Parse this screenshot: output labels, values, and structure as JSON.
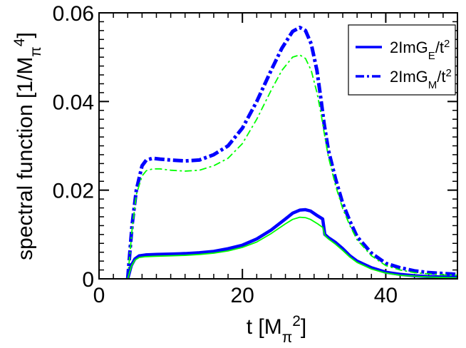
{
  "chart_data": {
    "type": "line",
    "xlabel": "t [M_π^2]",
    "ylabel": "spectral function [1/M_π^4]",
    "xlim": [
      0,
      50
    ],
    "ylim": [
      0,
      0.06
    ],
    "x_ticks": [
      {
        "value": 0,
        "label": "0"
      },
      {
        "value": 20,
        "label": "20"
      },
      {
        "value": 40,
        "label": "40"
      }
    ],
    "y_ticks": [
      {
        "value": 0,
        "label": "0"
      },
      {
        "value": 0.02,
        "label": "0.02"
      },
      {
        "value": 0.04,
        "label": "0.04"
      },
      {
        "value": 0.06,
        "label": "0.06"
      }
    ],
    "x_minor_step": 2,
    "y_minor_step": 0.002,
    "legend": {
      "position": "top-right",
      "entries": [
        {
          "label": "2ImG",
          "sub": "E",
          "suffix": "/t",
          "sup": "2",
          "style": "solid",
          "color": "#0000ff"
        },
        {
          "label": "2ImG",
          "sub": "M",
          "suffix": "/t",
          "sup": "2",
          "style": "dashdot",
          "color": "#0000ff"
        }
      ]
    },
    "series": [
      {
        "name": "2ImG_M/t^2 (band)",
        "style": "dashdot-thick",
        "color": "#0000ff",
        "x": [
          4,
          4.6,
          5.2,
          6,
          6.6,
          7.5,
          8.5,
          10,
          12,
          14,
          16,
          18,
          20,
          22,
          24,
          25.5,
          27,
          28,
          28.8,
          29.6,
          30.4,
          31,
          31.4,
          32,
          33,
          34,
          35,
          36,
          38,
          40,
          42,
          44,
          46,
          48,
          50
        ],
        "values": [
          0,
          0.012,
          0.02,
          0.0255,
          0.0268,
          0.0272,
          0.027,
          0.0268,
          0.0266,
          0.0268,
          0.028,
          0.03,
          0.034,
          0.04,
          0.047,
          0.052,
          0.0558,
          0.0567,
          0.056,
          0.053,
          0.047,
          0.04,
          0.035,
          0.029,
          0.0225,
          0.017,
          0.013,
          0.0095,
          0.0058,
          0.0035,
          0.0025,
          0.0018,
          0.0014,
          0.0012,
          0.001
        ]
      },
      {
        "name": "2ImG_M/t^2 (lower)",
        "style": "dashdot-thin",
        "color": "#00ff00",
        "x": [
          4,
          4.6,
          5.2,
          6,
          6.6,
          7.5,
          8.5,
          10,
          12,
          14,
          16,
          18,
          20,
          22,
          24,
          25.5,
          27,
          28,
          28.8,
          29.6,
          30.4,
          31,
          31.4,
          32,
          33,
          34,
          35,
          36,
          38,
          40,
          42,
          44,
          46,
          48,
          50
        ],
        "values": [
          0,
          0.011,
          0.019,
          0.0232,
          0.0244,
          0.0248,
          0.0248,
          0.0245,
          0.0243,
          0.0245,
          0.0255,
          0.0272,
          0.0305,
          0.036,
          0.0425,
          0.047,
          0.05,
          0.0505,
          0.0497,
          0.047,
          0.042,
          0.037,
          0.033,
          0.0275,
          0.021,
          0.0158,
          0.012,
          0.0088,
          0.0052,
          0.003,
          0.002,
          0.0014,
          0.0011,
          0.0009,
          0.0008
        ]
      },
      {
        "name": "2ImG_E/t^2 (band)",
        "style": "solid-thick",
        "color": "#0000ff",
        "x": [
          4,
          4.5,
          5,
          5.6,
          6.5,
          8,
          10,
          12,
          14,
          16,
          18,
          20,
          22,
          24,
          26,
          27,
          28,
          28.8,
          29.5,
          30.5,
          31.2,
          31.5,
          32,
          33,
          34,
          35,
          36,
          38,
          40,
          42,
          44,
          46,
          48,
          50
        ],
        "values": [
          0,
          0.003,
          0.0045,
          0.0052,
          0.0054,
          0.0055,
          0.0056,
          0.0057,
          0.0059,
          0.0062,
          0.0068,
          0.0076,
          0.009,
          0.011,
          0.0135,
          0.0148,
          0.0155,
          0.0156,
          0.0153,
          0.0142,
          0.0135,
          0.01,
          0.0093,
          0.0082,
          0.0068,
          0.0052,
          0.004,
          0.0025,
          0.0015,
          0.001,
          0.0007,
          0.0005,
          0.0004,
          0.0003
        ]
      },
      {
        "name": "2ImG_E/t^2 (lower)",
        "style": "solid-thin",
        "color": "#00ff00",
        "x": [
          4,
          4.5,
          5,
          5.6,
          6.5,
          8,
          10,
          12,
          14,
          16,
          18,
          20,
          22,
          24,
          26,
          27,
          28,
          28.8,
          29.5,
          30.5,
          31.2,
          31.5,
          32,
          33,
          34,
          35,
          36,
          38,
          40,
          42,
          44,
          46,
          48,
          50
        ],
        "values": [
          0,
          0.0028,
          0.0042,
          0.0048,
          0.005,
          0.0051,
          0.0052,
          0.0053,
          0.0055,
          0.0058,
          0.0063,
          0.0071,
          0.0083,
          0.0102,
          0.0124,
          0.0134,
          0.0139,
          0.0138,
          0.0134,
          0.0124,
          0.0116,
          0.0098,
          0.009,
          0.0078,
          0.0064,
          0.0049,
          0.0037,
          0.0022,
          0.0013,
          0.0008,
          0.0006,
          0.0004,
          0.0003,
          0.0002
        ]
      }
    ]
  }
}
